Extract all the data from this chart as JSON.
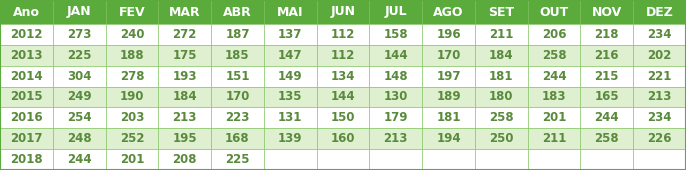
{
  "headers": [
    "Ano",
    "JAN",
    "FEV",
    "MAR",
    "ABR",
    "MAI",
    "JUN",
    "JUL",
    "AGO",
    "SET",
    "OUT",
    "NOV",
    "DEZ"
  ],
  "rows": [
    [
      "2012",
      "273",
      "240",
      "272",
      "187",
      "137",
      "112",
      "158",
      "196",
      "211",
      "206",
      "218",
      "234"
    ],
    [
      "2013",
      "225",
      "188",
      "175",
      "185",
      "147",
      "112",
      "144",
      "170",
      "184",
      "258",
      "216",
      "202"
    ],
    [
      "2014",
      "304",
      "278",
      "193",
      "151",
      "149",
      "134",
      "148",
      "197",
      "181",
      "244",
      "215",
      "221"
    ],
    [
      "2015",
      "249",
      "190",
      "184",
      "170",
      "135",
      "144",
      "130",
      "189",
      "180",
      "183",
      "165",
      "213"
    ],
    [
      "2016",
      "254",
      "203",
      "213",
      "223",
      "131",
      "150",
      "179",
      "181",
      "258",
      "201",
      "244",
      "234"
    ],
    [
      "2017",
      "248",
      "252",
      "195",
      "168",
      "139",
      "160",
      "213",
      "194",
      "250",
      "211",
      "258",
      "226"
    ],
    [
      "2018",
      "244",
      "201",
      "208",
      "225",
      "",
      "",
      "",
      "",
      "",
      "",
      "",
      ""
    ]
  ],
  "header_bg": "#5aaa3c",
  "header_text": "#FFFFFF",
  "row_bg_white": "#FFFFFF",
  "row_bg_green": "#dff0d0",
  "cell_text": "#5a8a3c",
  "border_color": "#7abf55",
  "outer_border": "#5aaa3c",
  "font_size": 8.5,
  "header_font_size": 9.0
}
